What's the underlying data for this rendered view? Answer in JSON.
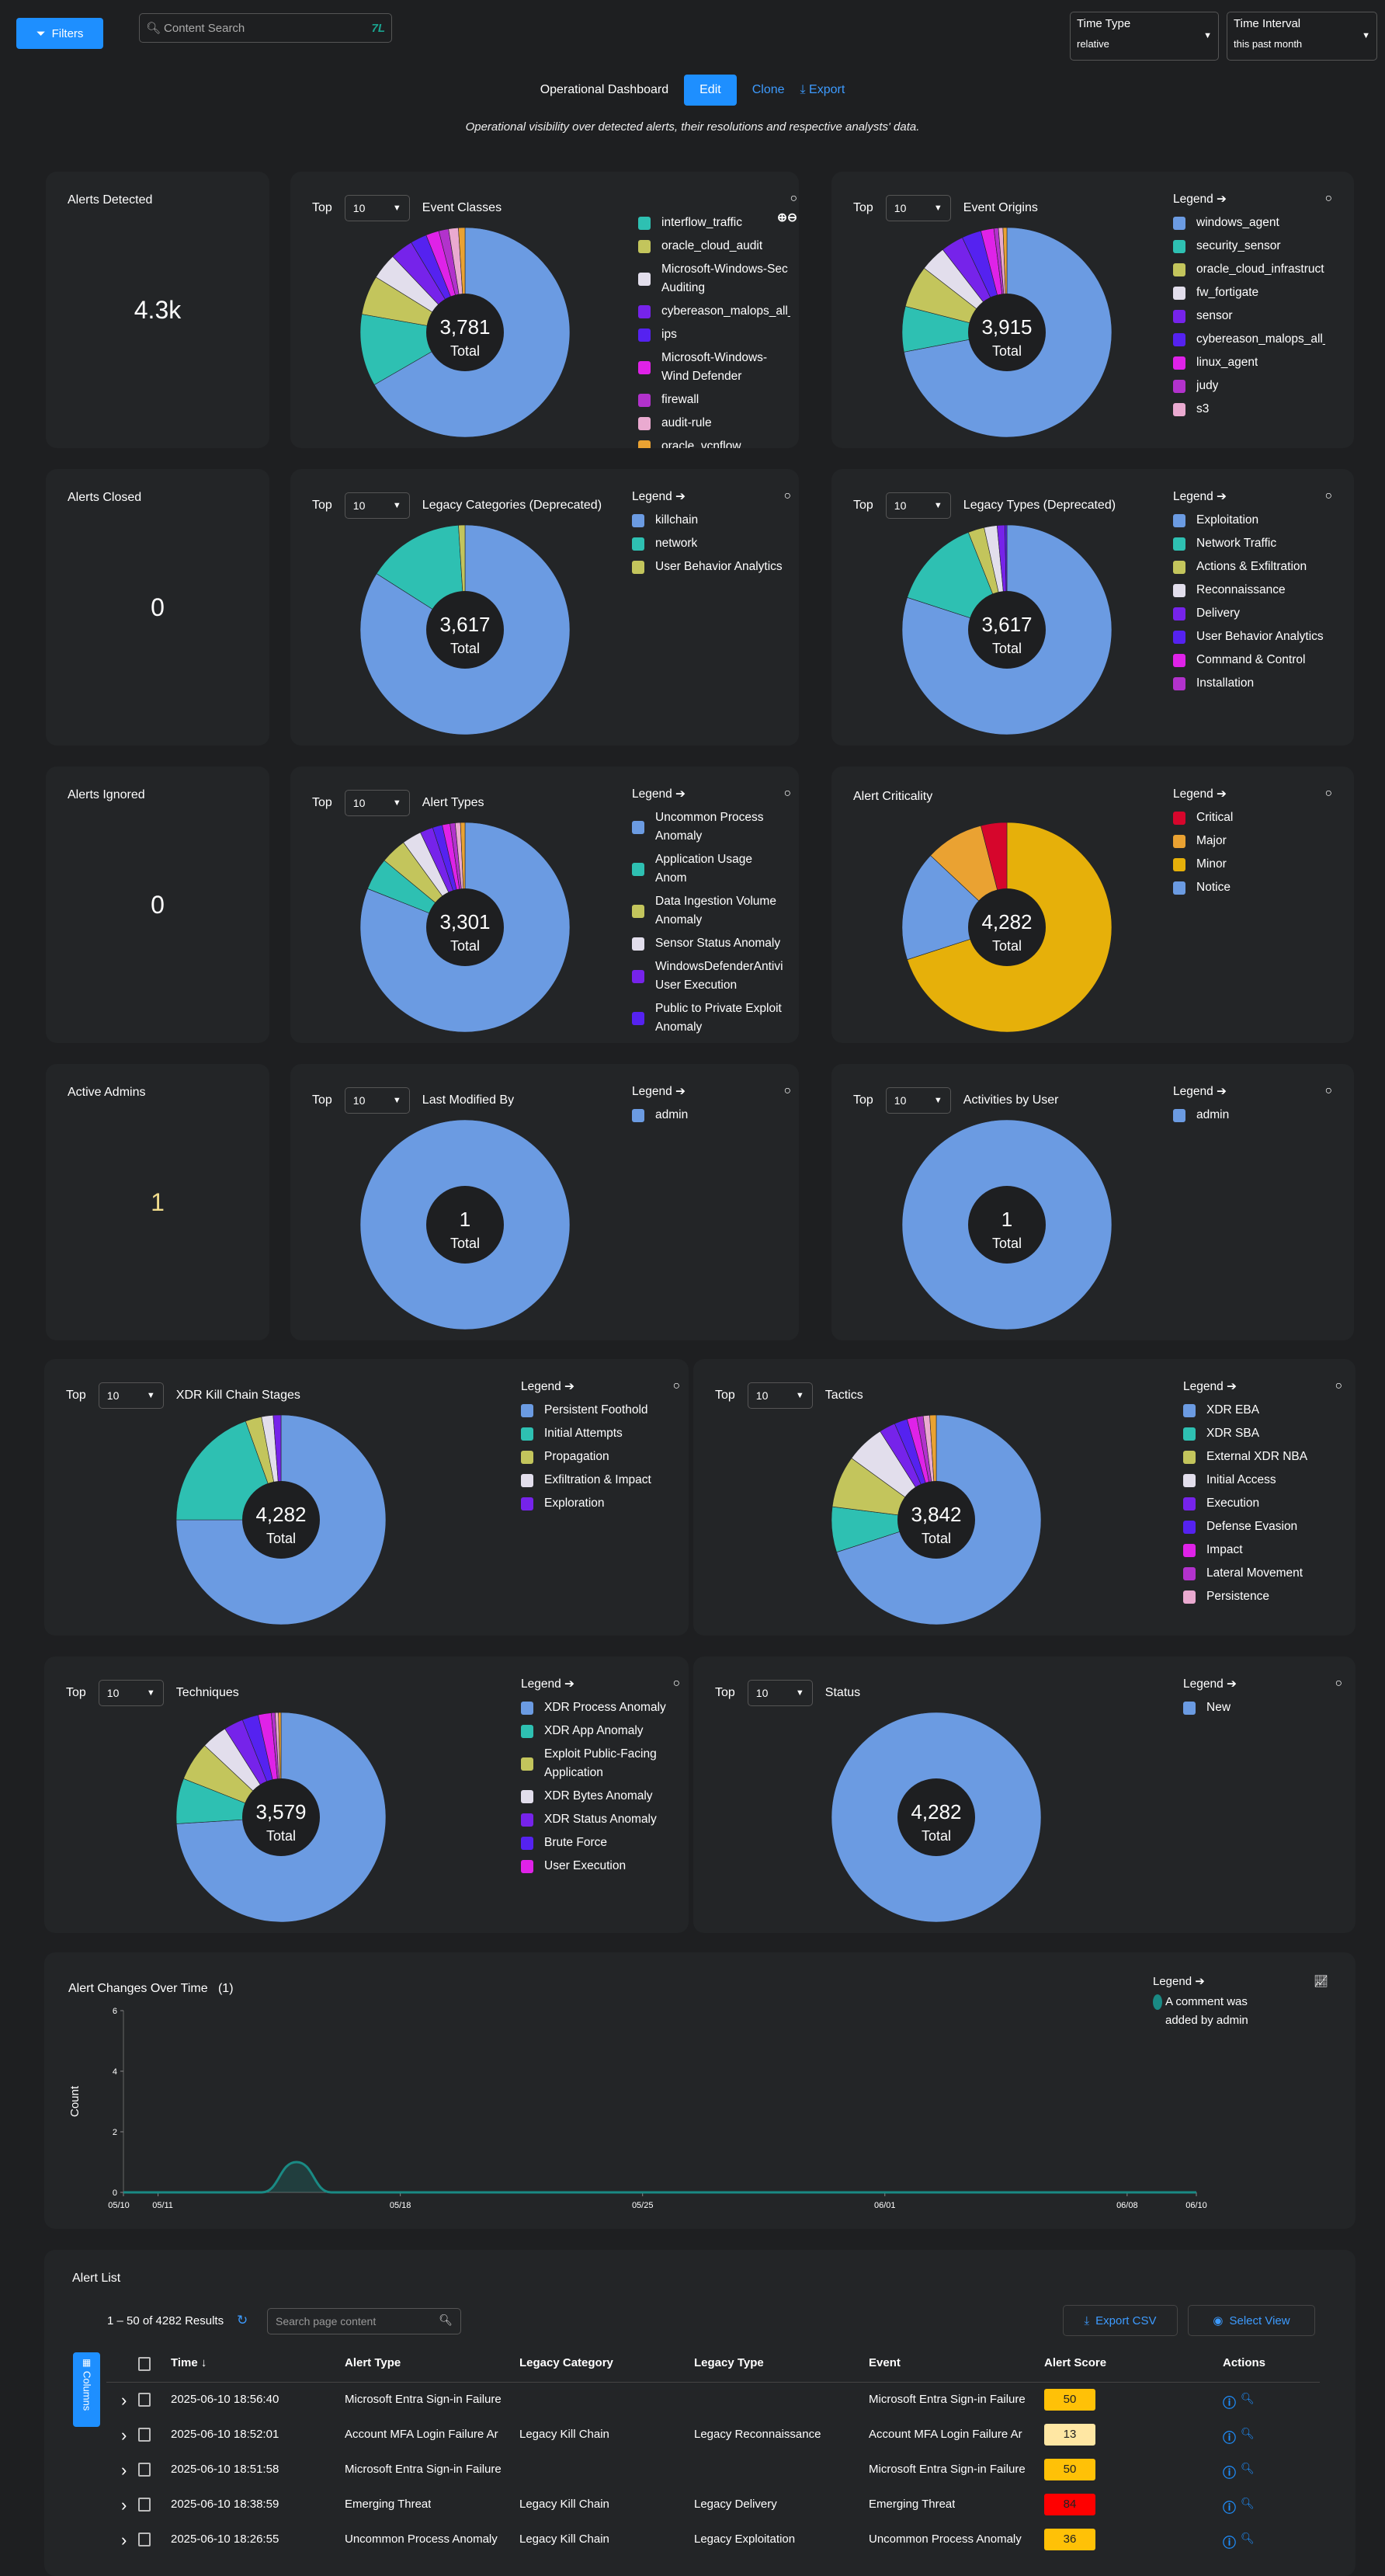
{
  "topbar": {
    "filters_label": "Filters",
    "search_placeholder": "Content Search",
    "time_type_label": "Time Type",
    "time_type_value": "relative",
    "time_interval_label": "Time Interval",
    "time_interval_value": "this past month"
  },
  "dashboard": {
    "title": "Operational Dashboard",
    "edit": "Edit",
    "clone": "Clone",
    "export": "Export",
    "subtitle": "Operational visibility over detected alerts, their resolutions and respective analysts' data."
  },
  "kpis": [
    {
      "label": "Alerts Detected",
      "value": "4.3k"
    },
    {
      "label": "Alerts Closed",
      "value": "0"
    },
    {
      "label": "Alerts Ignored",
      "value": "0"
    },
    {
      "label": "Active Admins",
      "value": "1",
      "color": "#f0dc8c"
    }
  ],
  "colors": {
    "blue": "#6b9be2",
    "teal": "#2ec0b2",
    "olive": "#c3c55c",
    "white": "#e2deec",
    "purple": "#7623ea",
    "indigo": "#5522f0",
    "magenta": "#df22e8",
    "violet": "#b232cc",
    "pink": "#eaaad0",
    "orange": "#eaa232",
    "red": "#d6062c",
    "yellow": "#e6b00a"
  },
  "common": {
    "top_label": "Top",
    "top_value": "10",
    "legend_label": "Legend",
    "total_label": "Total"
  },
  "chart_data": [
    {
      "type": "pie",
      "title": "Event Classes",
      "total": "3,781",
      "top": true,
      "legend_header": false,
      "zoom_icons": true,
      "slices": [
        [
          "blue",
          66
        ],
        [
          "teal",
          11
        ],
        [
          "olive",
          6
        ],
        [
          "white",
          4
        ],
        [
          "purple",
          3.5
        ],
        [
          "indigo",
          2.5
        ],
        [
          "magenta",
          2
        ],
        [
          "violet",
          1.5
        ],
        [
          "pink",
          1.5
        ],
        [
          "orange",
          1
        ]
      ],
      "legend": [
        [
          "interflow_traffic",
          "teal"
        ],
        [
          "oracle_cloud_audit",
          "olive"
        ],
        [
          "Microsoft-Windows-Sec Auditing",
          "white"
        ],
        [
          "cybereason_malops_all_",
          "purple"
        ],
        [
          "ips",
          "indigo"
        ],
        [
          "Microsoft-Windows-Wind Defender",
          "magenta"
        ],
        [
          "firewall",
          "violet"
        ],
        [
          "audit-rule",
          "pink"
        ],
        [
          "oracle_vcnflow",
          "orange"
        ]
      ]
    },
    {
      "type": "pie",
      "title": "Event Origins",
      "total": "3,915",
      "top": true,
      "legend_header": true,
      "slices": [
        [
          "blue",
          72
        ],
        [
          "teal",
          7
        ],
        [
          "olive",
          6.5
        ],
        [
          "white",
          4
        ],
        [
          "purple",
          3.5
        ],
        [
          "indigo",
          3
        ],
        [
          "magenta",
          2
        ],
        [
          "violet",
          0.7
        ],
        [
          "pink",
          0.7
        ],
        [
          "orange",
          0.6
        ]
      ],
      "legend": [
        [
          "windows_agent",
          "blue"
        ],
        [
          "security_sensor",
          "teal"
        ],
        [
          "oracle_cloud_infrastruct",
          "olive"
        ],
        [
          "fw_fortigate",
          "white"
        ],
        [
          "sensor",
          "purple"
        ],
        [
          "cybereason_malops_all_",
          "indigo"
        ],
        [
          "linux_agent",
          "magenta"
        ],
        [
          "judy",
          "violet"
        ],
        [
          "s3",
          "pink"
        ]
      ]
    },
    {
      "type": "pie",
      "title": "Legacy Categories (Deprecated)",
      "total": "3,617",
      "top": true,
      "legend_header": true,
      "slices": [
        [
          "blue",
          84
        ],
        [
          "teal",
          15
        ],
        [
          "olive",
          1
        ]
      ],
      "legend": [
        [
          "killchain",
          "blue"
        ],
        [
          "network",
          "teal"
        ],
        [
          "User Behavior Analytics",
          "olive"
        ]
      ]
    },
    {
      "type": "pie",
      "title": "Legacy Types (Deprecated)",
      "total": "3,617",
      "top": true,
      "legend_header": true,
      "slices": [
        [
          "blue",
          80
        ],
        [
          "teal",
          14
        ],
        [
          "olive",
          2.5
        ],
        [
          "white",
          2
        ],
        [
          "purple",
          1.2
        ],
        [
          "indigo",
          0.3
        ]
      ],
      "legend": [
        [
          "Exploitation",
          "blue"
        ],
        [
          "Network Traffic",
          "teal"
        ],
        [
          "Actions & Exfiltration",
          "olive"
        ],
        [
          "Reconnaissance",
          "white"
        ],
        [
          "Delivery",
          "purple"
        ],
        [
          "User Behavior Analytics",
          "indigo"
        ],
        [
          "Command & Control",
          "magenta"
        ],
        [
          "Installation",
          "violet"
        ]
      ]
    },
    {
      "type": "pie",
      "title": "Alert Types",
      "total": "3,301",
      "top": true,
      "legend_header": true,
      "slices": [
        [
          "blue",
          81
        ],
        [
          "teal",
          5
        ],
        [
          "olive",
          4
        ],
        [
          "white",
          3
        ],
        [
          "purple",
          2
        ],
        [
          "indigo",
          1.5
        ],
        [
          "magenta",
          1.2
        ],
        [
          "violet",
          0.8
        ],
        [
          "pink",
          0.8
        ],
        [
          "orange",
          0.7
        ]
      ],
      "legend": [
        [
          "Uncommon Process Anomaly",
          "blue"
        ],
        [
          "Application Usage Anom",
          "teal"
        ],
        [
          "Data Ingestion Volume Anomaly",
          "olive"
        ],
        [
          "Sensor Status Anomaly",
          "white"
        ],
        [
          "WindowsDefenderAntivi User Execution",
          "purple"
        ],
        [
          "Public to Private Exploit Anomaly",
          "indigo"
        ]
      ]
    },
    {
      "type": "pie",
      "title": "Alert Criticality",
      "total": "4,282",
      "top": false,
      "legend_header": true,
      "slices": [
        [
          "yellow",
          70
        ],
        [
          "blue",
          17
        ],
        [
          "orange",
          9
        ],
        [
          "red",
          4
        ]
      ],
      "legend": [
        [
          "Critical",
          "red"
        ],
        [
          "Major",
          "orange"
        ],
        [
          "Minor",
          "yellow"
        ],
        [
          "Notice",
          "blue"
        ]
      ]
    },
    {
      "type": "pie",
      "title": "Last Modified By",
      "total": "1",
      "top": true,
      "legend_header": true,
      "slices": [
        [
          "blue",
          100
        ]
      ],
      "legend": [
        [
          "admin",
          "blue"
        ]
      ]
    },
    {
      "type": "pie",
      "title": "Activities by User",
      "total": "1",
      "top": true,
      "legend_header": true,
      "slices": [
        [
          "blue",
          100
        ]
      ],
      "legend": [
        [
          "admin",
          "blue"
        ]
      ]
    },
    {
      "type": "pie",
      "title": "XDR Kill Chain Stages",
      "total": "4,282",
      "top": true,
      "legend_header": true,
      "slices": [
        [
          "blue",
          75
        ],
        [
          "teal",
          19.5
        ],
        [
          "olive",
          2.5
        ],
        [
          "white",
          1.8
        ],
        [
          "purple",
          1.2
        ]
      ],
      "legend": [
        [
          "Persistent Foothold",
          "blue"
        ],
        [
          "Initial Attempts",
          "teal"
        ],
        [
          "Propagation",
          "olive"
        ],
        [
          "Exfiltration & Impact",
          "white"
        ],
        [
          "Exploration",
          "purple"
        ]
      ]
    },
    {
      "type": "pie",
      "title": "Tactics",
      "total": "3,842",
      "top": true,
      "legend_header": true,
      "slices": [
        [
          "blue",
          70
        ],
        [
          "teal",
          7
        ],
        [
          "olive",
          8
        ],
        [
          "white",
          6
        ],
        [
          "purple",
          2.5
        ],
        [
          "indigo",
          2
        ],
        [
          "magenta",
          1.5
        ],
        [
          "violet",
          1
        ],
        [
          "pink",
          1
        ],
        [
          "orange",
          1
        ]
      ],
      "legend": [
        [
          "XDR EBA",
          "blue"
        ],
        [
          "XDR SBA",
          "teal"
        ],
        [
          "External XDR NBA",
          "olive"
        ],
        [
          "Initial Access",
          "white"
        ],
        [
          "Execution",
          "purple"
        ],
        [
          "Defense Evasion",
          "indigo"
        ],
        [
          "Impact",
          "magenta"
        ],
        [
          "Lateral Movement",
          "violet"
        ],
        [
          "Persistence",
          "pink"
        ]
      ]
    },
    {
      "type": "pie",
      "title": "Techniques",
      "total": "3,579",
      "top": true,
      "legend_header": true,
      "slices": [
        [
          "blue",
          74
        ],
        [
          "teal",
          7
        ],
        [
          "olive",
          6
        ],
        [
          "white",
          4
        ],
        [
          "purple",
          3
        ],
        [
          "indigo",
          2.5
        ],
        [
          "magenta",
          2
        ],
        [
          "violet",
          0.6
        ],
        [
          "pink",
          0.5
        ],
        [
          "orange",
          0.4
        ]
      ],
      "legend": [
        [
          "XDR Process Anomaly",
          "blue"
        ],
        [
          "XDR App Anomaly",
          "teal"
        ],
        [
          "Exploit Public-Facing Application",
          "olive"
        ],
        [
          "XDR Bytes Anomaly",
          "white"
        ],
        [
          "XDR Status Anomaly",
          "purple"
        ],
        [
          "Brute Force",
          "indigo"
        ],
        [
          "User Execution",
          "magenta"
        ]
      ]
    },
    {
      "type": "pie",
      "title": "Status",
      "total": "4,282",
      "top": true,
      "legend_header": true,
      "slices": [
        [
          "blue",
          100
        ]
      ],
      "legend": [
        [
          "New",
          "blue"
        ]
      ]
    },
    {
      "type": "area",
      "title": "Alert Changes Over Time",
      "count_label": "(1)",
      "ylabel": "Count",
      "ylim": [
        0,
        6
      ],
      "yticks": [
        "0",
        "2",
        "4",
        "6"
      ],
      "xticks": [
        "05/10",
        "05/11",
        "05/18",
        "05/25",
        "06/01",
        "06/08",
        "06/10"
      ],
      "series": [
        {
          "name": "A comment was added by admin",
          "color": "#1a8a84",
          "points": [
            [
              "05/10",
              0
            ],
            [
              "05/14",
              0
            ],
            [
              "05/15",
              1
            ],
            [
              "05/16",
              0
            ],
            [
              "06/10",
              0
            ]
          ]
        }
      ]
    }
  ],
  "alert_list": {
    "title": "Alert List",
    "results": "1 – 50 of 4282 Results",
    "search_placeholder": "Search page content",
    "export_csv": "Export CSV",
    "select_view": "Select View",
    "columns_tab": "Columns",
    "headers": [
      "Time ↓",
      "Alert Type",
      "Legacy Category",
      "Legacy Type",
      "Event",
      "Alert Score",
      "Actions"
    ],
    "rows": [
      {
        "time": "2025-06-10 18:56:40",
        "alert_type": "Microsoft Entra Sign-in Failure",
        "legacy_category": "",
        "legacy_type": "",
        "event": "Microsoft Entra Sign-in Failure",
        "score": "50",
        "score_color": "#ffc107"
      },
      {
        "time": "2025-06-10 18:52:01",
        "alert_type": "Account MFA Login Failure Ar",
        "legacy_category": "Legacy Kill Chain",
        "legacy_type": "Legacy Reconnaissance",
        "event": "Account MFA Login Failure Ar",
        "score": "13",
        "score_color": "#ffe7a3"
      },
      {
        "time": "2025-06-10 18:51:58",
        "alert_type": "Microsoft Entra Sign-in Failure",
        "legacy_category": "",
        "legacy_type": "",
        "event": "Microsoft Entra Sign-in Failure",
        "score": "50",
        "score_color": "#ffc107"
      },
      {
        "time": "2025-06-10 18:38:59",
        "alert_type": "Emerging Threat",
        "legacy_category": "Legacy Kill Chain",
        "legacy_type": "Legacy Delivery",
        "event": "Emerging Threat",
        "score": "84",
        "score_color": "#ff0000"
      },
      {
        "time": "2025-06-10 18:26:55",
        "alert_type": "Uncommon Process Anomaly",
        "legacy_category": "Legacy Kill Chain",
        "legacy_type": "Legacy Exploitation",
        "event": "Uncommon Process Anomaly",
        "score": "36",
        "score_color": "#ffc107"
      }
    ]
  }
}
